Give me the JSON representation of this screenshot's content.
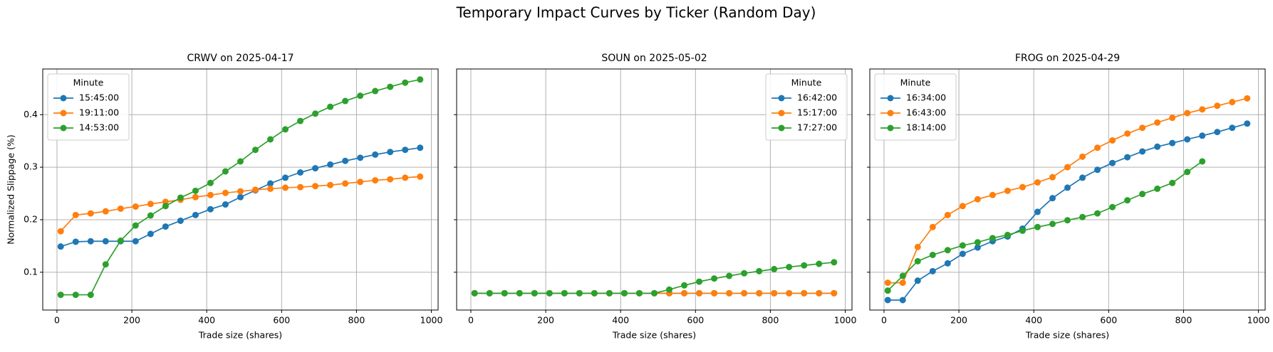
{
  "title": "Temporary Impact Curves by Ticker (Random Day)",
  "chart_data": [
    {
      "type": "line",
      "title": "CRWV on 2025-04-17",
      "x_label": "Trade size (shares)",
      "y_label": "Normalized Slippage (%)",
      "x": [
        10,
        50,
        90,
        130,
        170,
        210,
        250,
        290,
        330,
        370,
        410,
        450,
        490,
        530,
        570,
        610,
        650,
        690,
        730,
        770,
        810,
        850,
        890,
        930,
        970
      ],
      "series": [
        {
          "name": "15:45:00",
          "color": "#1f77b4",
          "values": [
            0.149,
            0.158,
            0.159,
            0.159,
            0.159,
            0.159,
            0.173,
            0.187,
            0.198,
            0.209,
            0.22,
            0.229,
            0.243,
            0.256,
            0.269,
            0.28,
            0.29,
            0.298,
            0.305,
            0.312,
            0.318,
            0.324,
            0.329,
            0.333,
            0.337
          ]
        },
        {
          "name": "19:11:00",
          "color": "#ff7f0e",
          "values": [
            0.178,
            0.209,
            0.212,
            0.216,
            0.221,
            0.225,
            0.23,
            0.234,
            0.238,
            0.243,
            0.247,
            0.251,
            0.254,
            0.257,
            0.259,
            0.261,
            0.262,
            0.264,
            0.266,
            0.269,
            0.272,
            0.275,
            0.277,
            0.28,
            0.282
          ]
        },
        {
          "name": "14:53:00",
          "color": "#2ca02c",
          "values": [
            0.057,
            0.057,
            0.057,
            0.115,
            0.16,
            0.189,
            0.208,
            0.226,
            0.242,
            0.255,
            0.27,
            0.292,
            0.311,
            0.333,
            0.353,
            0.372,
            0.388,
            0.402,
            0.415,
            0.426,
            0.436,
            0.445,
            0.453,
            0.461,
            0.467
          ]
        }
      ],
      "legend_title": "Minute",
      "legend": "upper left",
      "xlim": [
        -38,
        1018
      ],
      "xticks": [
        0,
        200,
        400,
        600,
        800,
        1000
      ],
      "ylim": [
        0.028,
        0.487
      ],
      "yticks": [
        0.1,
        0.2,
        0.3,
        0.4
      ],
      "grid": true
    },
    {
      "type": "line",
      "title": "SOUN on 2025-05-02",
      "x_label": "Trade size (shares)",
      "x": [
        10,
        50,
        90,
        130,
        170,
        210,
        250,
        290,
        330,
        370,
        410,
        450,
        490,
        530,
        570,
        610,
        650,
        690,
        730,
        770,
        810,
        850,
        890,
        930,
        970
      ],
      "series": [
        {
          "name": "16:42:00",
          "color": "#1f77b4",
          "values": [
            0.06,
            0.06,
            0.06,
            0.06,
            0.06,
            0.06,
            0.06,
            0.06,
            0.06,
            0.06,
            0.06,
            0.06,
            0.06,
            0.06,
            0.06,
            0.06,
            0.06,
            0.06,
            0.06,
            0.06,
            0.06,
            0.06,
            0.06,
            0.06,
            0.06
          ]
        },
        {
          "name": "15:17:00",
          "color": "#ff7f0e",
          "values": [
            0.06,
            0.06,
            0.06,
            0.06,
            0.06,
            0.06,
            0.06,
            0.06,
            0.06,
            0.06,
            0.06,
            0.06,
            0.06,
            0.06,
            0.06,
            0.06,
            0.06,
            0.06,
            0.06,
            0.06,
            0.06,
            0.06,
            0.06,
            0.06,
            0.06
          ]
        },
        {
          "name": "17:27:00",
          "color": "#2ca02c",
          "values": [
            0.06,
            0.06,
            0.06,
            0.06,
            0.06,
            0.06,
            0.06,
            0.06,
            0.06,
            0.06,
            0.06,
            0.06,
            0.06,
            0.067,
            0.075,
            0.082,
            0.088,
            0.093,
            0.098,
            0.102,
            0.106,
            0.11,
            0.113,
            0.116,
            0.119
          ]
        }
      ],
      "legend_title": "Minute",
      "legend": "upper right",
      "xlim": [
        -38,
        1018
      ],
      "xticks": [
        0,
        200,
        400,
        600,
        800,
        1000
      ],
      "ylim": [
        0.028,
        0.487
      ],
      "yticks": [
        0.1,
        0.2,
        0.3,
        0.4
      ],
      "grid": true
    },
    {
      "type": "line",
      "title": "FROG on 2025-04-29",
      "x_label": "Trade size (shares)",
      "x": [
        10,
        50,
        90,
        130,
        170,
        210,
        250,
        290,
        330,
        370,
        410,
        450,
        490,
        530,
        570,
        610,
        650,
        690,
        730,
        770,
        810,
        850,
        890,
        930,
        970
      ],
      "series": [
        {
          "name": "16:34:00",
          "color": "#1f77b4",
          "values": [
            0.047,
            0.047,
            0.084,
            0.102,
            0.117,
            0.135,
            0.147,
            0.159,
            0.168,
            0.183,
            0.215,
            0.241,
            0.261,
            0.28,
            0.295,
            0.308,
            0.319,
            0.33,
            0.339,
            0.346,
            0.353,
            0.36,
            0.367,
            0.375,
            0.383
          ]
        },
        {
          "name": "16:43:00",
          "color": "#ff7f0e",
          "values": [
            0.08,
            0.08,
            0.148,
            0.186,
            0.209,
            0.226,
            0.239,
            0.247,
            0.255,
            0.262,
            0.271,
            0.281,
            0.3,
            0.32,
            0.337,
            0.351,
            0.364,
            0.375,
            0.385,
            0.394,
            0.403,
            0.41,
            0.417,
            0.424,
            0.431
          ]
        },
        {
          "name": "18:14:00",
          "color": "#2ca02c",
          "values": [
            0.065,
            0.093,
            0.121,
            0.133,
            0.142,
            0.151,
            0.157,
            0.165,
            0.171,
            0.179,
            0.186,
            0.192,
            0.199,
            0.205,
            0.212,
            0.224,
            0.237,
            0.249,
            0.259,
            0.27,
            0.291,
            0.311,
            null,
            null,
            null
          ]
        }
      ],
      "legend_title": "Minute",
      "legend": "upper left",
      "xlim": [
        -38,
        1018
      ],
      "xticks": [
        0,
        200,
        400,
        600,
        800,
        1000
      ],
      "ylim": [
        0.028,
        0.487
      ],
      "yticks": [
        0.1,
        0.2,
        0.3,
        0.4
      ],
      "grid": true
    }
  ]
}
